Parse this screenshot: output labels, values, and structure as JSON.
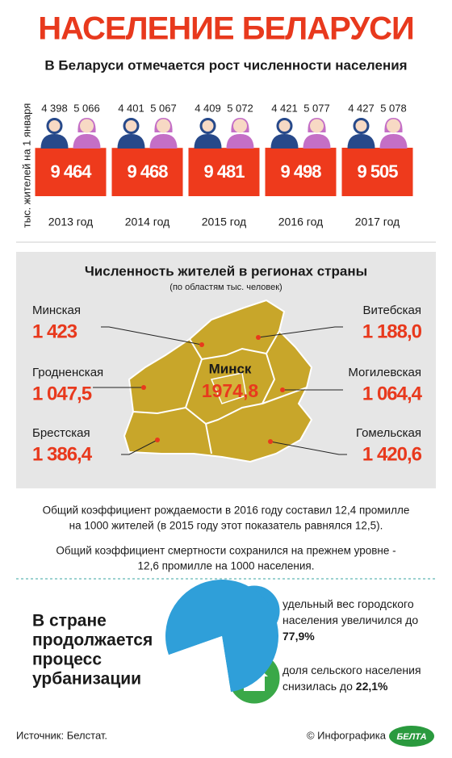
{
  "header": {
    "title": "НАСЕЛЕНИЕ БЕЛАРУСИ",
    "subtitle": "В Беларуси отмечается рост численности населения"
  },
  "chart_data": [
    {
      "type": "bar",
      "y_label": "тыс. жителей на 1 января",
      "categories": [
        "2013 год",
        "2014 год",
        "2015 год",
        "2016 год",
        "2017 год"
      ],
      "series": [
        {
          "color": "#ee3a1c",
          "values": [
            9464,
            9468,
            9481,
            9498,
            9505
          ],
          "value_labels": [
            "9 464",
            "9 468",
            "9 481",
            "9 498",
            "9 505"
          ]
        },
        {
          "color": "#27498a",
          "values": [
            4398,
            4401,
            4409,
            4421,
            4427
          ],
          "value_labels": [
            "4 398",
            "4 401",
            "4 409",
            "4 421",
            "4 427"
          ]
        },
        {
          "color": "#c46fc6",
          "values": [
            5066,
            5067,
            5072,
            5077,
            5078
          ],
          "value_labels": [
            "5 066",
            "5 067",
            "5 072",
            "5 077",
            "5 078"
          ]
        }
      ]
    },
    {
      "type": "pie",
      "categories": [
        "удельный вес городского населения увеличился до",
        "доля сельского населения снизилась до"
      ],
      "values": [
        77.9,
        22.1
      ],
      "value_labels": [
        "77,9%",
        "22,1%"
      ],
      "colors": [
        "#2f9fd9",
        "#ffffff"
      ]
    }
  ],
  "regions": {
    "title": "Численность жителей в регионах страны",
    "subtitle": "(по областям тыс. человек)",
    "capital": {
      "name": "Минск",
      "value": "1974,8"
    },
    "items": [
      {
        "name": "Минская",
        "value": "1 423"
      },
      {
        "name": "Гродненская",
        "value": "1 047,5"
      },
      {
        "name": "Брестская",
        "value": "1 386,4"
      },
      {
        "name": "Витебская",
        "value": "1 188,0"
      },
      {
        "name": "Могилевская",
        "value": "1 064,4"
      },
      {
        "name": "Гомельская",
        "value": "1 420,6"
      }
    ]
  },
  "notes": [
    [
      "Общий коэффициент рождаемости в 2016 году составил 12,4 промилле",
      "на 1000 жителей (в 2015 году этот показатель равнялся 12,5)."
    ],
    [
      "Общий коэффициент смертности сохранился на прежнем уровне -",
      "12,6 промилле на 1000 населения."
    ]
  ],
  "urbanization": {
    "heading": [
      "В стране",
      "продолжается",
      "процесс",
      "урбанизации"
    ]
  },
  "footer": {
    "source": "Источник: Белстат.",
    "credit": "© Инфографика",
    "logo": "БЕЛТА"
  }
}
